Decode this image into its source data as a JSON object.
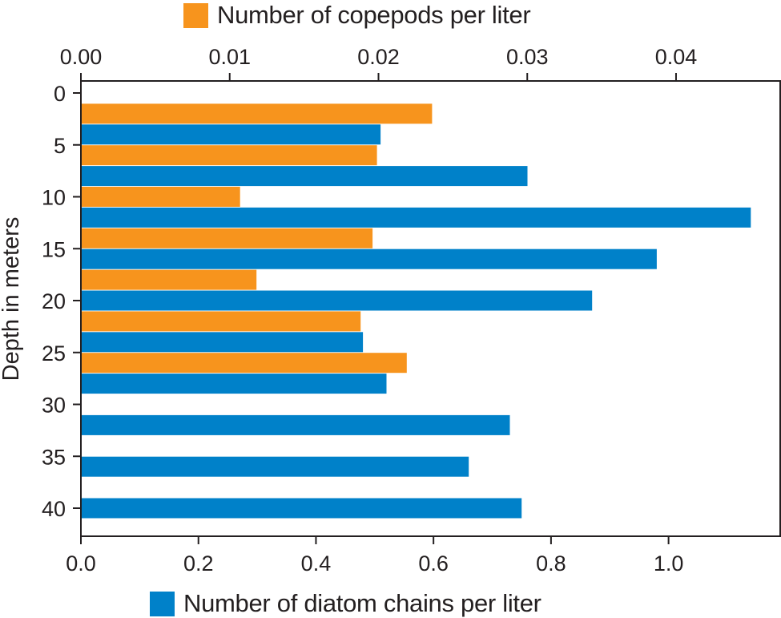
{
  "colors": {
    "copepods": "#f7941d",
    "diatoms": "#0081c9",
    "axis": "#231f20",
    "background": "#ffffff"
  },
  "legend": {
    "top_label": "Number of copepods per liter",
    "bottom_label": "Number of diatom chains per liter"
  },
  "chart_data": {
    "type": "bar",
    "orientation": "horizontal",
    "title": "",
    "ylabel": "Depth in meters",
    "y_axis": {
      "ylim": [
        0,
        42
      ],
      "inverted": true,
      "ticks": [
        0,
        5,
        10,
        15,
        20,
        25,
        30,
        35,
        40
      ],
      "tick_labels": [
        "0",
        "5",
        "10",
        "15",
        "20",
        "25",
        "30",
        "35",
        "40"
      ]
    },
    "x_axis_top": {
      "series": "Number of copepods per liter",
      "xlim": [
        0,
        0.047
      ],
      "ticks": [
        0.0,
        0.01,
        0.02,
        0.03,
        0.04
      ],
      "tick_labels": [
        "0.00",
        "0.01",
        "0.02",
        "0.03",
        "0.04"
      ]
    },
    "x_axis_bottom": {
      "series": "Number of diatom chains per liter",
      "xlim": [
        0,
        1.19
      ],
      "ticks": [
        0.0,
        0.2,
        0.4,
        0.6,
        0.8,
        1.0
      ],
      "tick_labels": [
        "0.0",
        "0.2",
        "0.4",
        "0.6",
        "0.8",
        "1.0"
      ]
    },
    "series": [
      {
        "name": "Number of copepods per liter",
        "axis": "top",
        "depths": [
          2,
          6,
          10,
          14,
          18,
          22,
          26
        ],
        "values": [
          0.0236,
          0.0199,
          0.0107,
          0.0196,
          0.0118,
          0.0188,
          0.0219
        ]
      },
      {
        "name": "Number of diatom chains per liter",
        "axis": "bottom",
        "depths": [
          4,
          8,
          12,
          16,
          20,
          24,
          28,
          32,
          36,
          40
        ],
        "values": [
          0.51,
          0.76,
          1.14,
          0.98,
          0.87,
          0.48,
          0.52,
          0.73,
          0.66,
          0.75
        ]
      }
    ],
    "grid": false,
    "legend_placement": "top and bottom, outside plot"
  }
}
